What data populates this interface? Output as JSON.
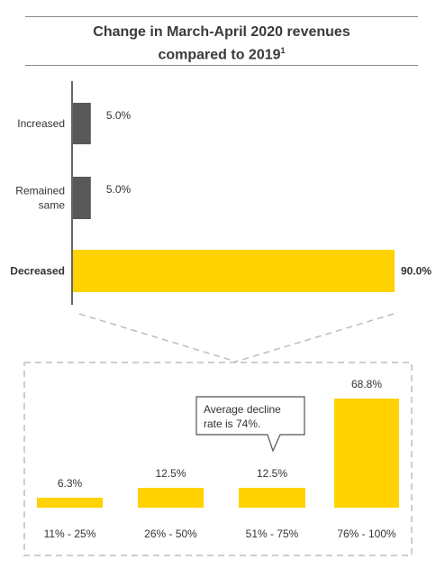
{
  "header": {
    "title_line1": "Change in March-April 2020 revenues",
    "title_line2": "compared to 2019",
    "footnote_mark": "1"
  },
  "colors": {
    "gray_bar": "#595959",
    "yellow_bar": "#ffd200",
    "axis": "#333333",
    "dashed": "#bdbdbd"
  },
  "chart_data": [
    {
      "type": "bar",
      "orientation": "horizontal",
      "title": "Change in March-April 2020 revenues compared to 2019¹",
      "categories": [
        "Increased",
        "Remained same",
        "Decreased"
      ],
      "category_lines": [
        [
          "Increased"
        ],
        [
          "Remained",
          "same"
        ],
        [
          "Decreased"
        ]
      ],
      "values": [
        5.0,
        5.0,
        90.0
      ],
      "value_labels": [
        "5.0%",
        "5.0%",
        "90.0%"
      ],
      "bar_colors": [
        "#595959",
        "#595959",
        "#ffd200"
      ],
      "bold_category": "Decreased",
      "xlim": [
        0,
        90
      ]
    },
    {
      "type": "bar",
      "orientation": "vertical",
      "categories": [
        "11% - 25%",
        "26% - 50%",
        "51% - 75%",
        "76% - 100%"
      ],
      "values": [
        6.3,
        12.5,
        12.5,
        68.8
      ],
      "value_labels": [
        "6.3%",
        "12.5%",
        "12.5%",
        "68.8%"
      ],
      "bar_color": "#ffd200",
      "ylim": [
        0,
        68.8
      ],
      "annotation": {
        "lines": [
          "Average decline",
          "rate is 74%."
        ],
        "points_to": "51% - 75%"
      }
    }
  ]
}
